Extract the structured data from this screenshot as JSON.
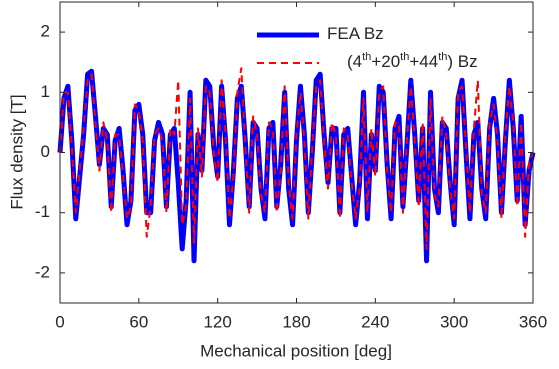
{
  "chart_data": {
    "type": "line",
    "x_label": "Mechanical position [deg]",
    "y_label": "Flux density [T]",
    "xlim": [
      0,
      360
    ],
    "xticks": [
      0,
      60,
      120,
      180,
      240,
      300,
      360
    ],
    "ylim": [
      -2.5,
      2.5
    ],
    "yticks": [
      -2,
      -1,
      0,
      1,
      2
    ],
    "legend": "upper right",
    "x": [
      0,
      3,
      6,
      9,
      12,
      15,
      18,
      21,
      24,
      27,
      30,
      33,
      36,
      39,
      42,
      45,
      48,
      51,
      54,
      57,
      60,
      63,
      66,
      69,
      72,
      75,
      78,
      81,
      84,
      87,
      90,
      93,
      96,
      99,
      102,
      105,
      108,
      111,
      114,
      117,
      120,
      123,
      126,
      129,
      132,
      135,
      138,
      141,
      144,
      147,
      150,
      153,
      156,
      159,
      162,
      165,
      168,
      171,
      174,
      177,
      180,
      183,
      186,
      189,
      192,
      195,
      198,
      201,
      204,
      207,
      210,
      213,
      216,
      219,
      222,
      225,
      228,
      231,
      234,
      237,
      240,
      243,
      246,
      249,
      252,
      255,
      258,
      261,
      264,
      267,
      270,
      273,
      276,
      279,
      282,
      285,
      288,
      291,
      294,
      297,
      300,
      303,
      306,
      309,
      312,
      315,
      318,
      321,
      324,
      327,
      330,
      333,
      336,
      339,
      342,
      345,
      348,
      351,
      354,
      357,
      360
    ],
    "series": [
      {
        "name": "FEA Bz",
        "color": "#0000ff",
        "style": "solid",
        "values": [
          0,
          0.9,
          1.1,
          0.2,
          -1.1,
          -0.4,
          0.3,
          1.3,
          1.35,
          0.6,
          -0.2,
          0.4,
          0.3,
          -0.9,
          0.2,
          0.4,
          -0.3,
          -1.2,
          -0.8,
          0.7,
          0.8,
          0.3,
          -1.0,
          -1.0,
          0.2,
          0.5,
          0.3,
          -0.9,
          0.3,
          0.4,
          -0.5,
          -1.6,
          -0.8,
          1.0,
          -1.8,
          0.3,
          -0.3,
          1.2,
          1.1,
          0.1,
          -0.4,
          1.1,
          0.2,
          -1.2,
          -0.3,
          0.9,
          1.1,
          0.2,
          -0.9,
          0.5,
          0.4,
          -0.6,
          -1.1,
          0.4,
          0.5,
          -0.9,
          -0.2,
          1.0,
          -0.6,
          -1.2,
          0.2,
          1.1,
          0.3,
          -1.0,
          0.0,
          1.2,
          1.3,
          0.3,
          -0.5,
          0.4,
          0.4,
          -1.0,
          0.3,
          0.4,
          -0.4,
          -1.2,
          -0.5,
          1.0,
          -1.1,
          0.3,
          -0.3,
          1.1,
          1.0,
          -0.2,
          -1.1,
          0.4,
          0.6,
          -0.9,
          0.1,
          1.2,
          0.3,
          -0.8,
          0.4,
          -1.8,
          1.0,
          -0.6,
          -1.0,
          0.5,
          0.4,
          -0.5,
          -1.2,
          0.9,
          1.2,
          0.0,
          -1.1,
          0.3,
          0.5,
          -0.6,
          -1.1,
          0.4,
          0.9,
          0.3,
          -1.0,
          0.2,
          1.2,
          0.4,
          -0.8,
          0.6,
          -1.2,
          -0.3,
          0.0
        ]
      },
      {
        "name": "(4th+20th+44th) Bz",
        "color": "#ff0000",
        "style": "dashed",
        "values": [
          0,
          1.0,
          1.0,
          0.1,
          -1.0,
          -0.3,
          0.4,
          1.2,
          1.3,
          0.5,
          -0.3,
          0.5,
          0.2,
          -1.0,
          0.3,
          0.3,
          -0.4,
          -1.1,
          -0.9,
          0.8,
          0.7,
          0.2,
          -1.4,
          -0.9,
          0.3,
          0.4,
          0.2,
          -1.0,
          0.4,
          0.3,
          1.2,
          -1.2,
          -0.9,
          0.9,
          -1.5,
          0.4,
          -0.4,
          1.1,
          1.0,
          0.0,
          -0.5,
          1.2,
          0.3,
          -1.1,
          -0.4,
          1.0,
          1.4,
          0.1,
          -1.0,
          0.6,
          0.3,
          -0.7,
          -1.0,
          0.5,
          0.4,
          -1.0,
          -0.3,
          1.1,
          -0.5,
          -1.1,
          0.3,
          1.0,
          0.2,
          -1.1,
          0.1,
          1.1,
          1.2,
          0.2,
          -0.6,
          0.5,
          0.3,
          -1.1,
          0.4,
          0.3,
          -0.5,
          -1.1,
          -0.6,
          0.9,
          -1.0,
          0.4,
          -0.4,
          1.0,
          1.1,
          -0.3,
          -1.0,
          0.5,
          0.5,
          -1.0,
          0.2,
          1.1,
          0.2,
          -0.9,
          0.5,
          -1.6,
          0.9,
          -0.7,
          -0.9,
          0.6,
          0.3,
          -0.6,
          -1.1,
          1.0,
          1.1,
          0.1,
          -1.0,
          0.4,
          1.2,
          -0.7,
          -1.0,
          0.5,
          0.8,
          0.2,
          -1.1,
          0.3,
          1.1,
          0.5,
          -0.9,
          0.5,
          -1.4,
          -0.2,
          0.0
        ]
      }
    ]
  }
}
